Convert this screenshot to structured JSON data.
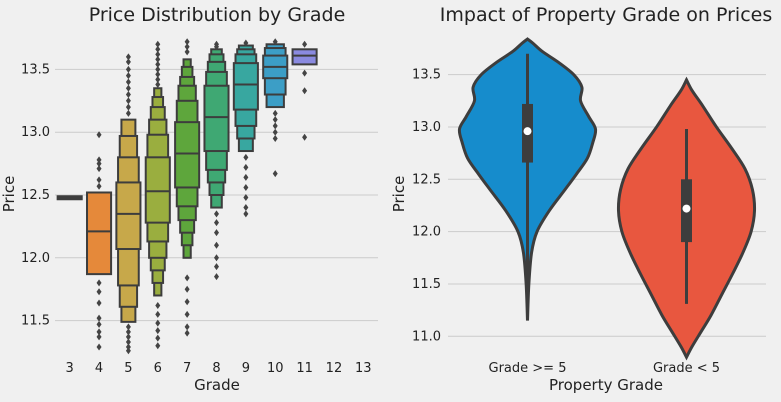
{
  "colors": {
    "background": "#f0f0f0",
    "grid": "#cbcbcb",
    "outline": "#3d3d3d",
    "grade_palette": [
      "#a0a0a0",
      "#e5893a",
      "#c7a84a",
      "#9aae3f",
      "#5ea63c",
      "#3fa873",
      "#38a7a0",
      "#3c9ec6",
      "#8a8ae0"
    ],
    "violin_high": "#168ccc",
    "violin_low": "#e8573f"
  },
  "chart_data": [
    {
      "type": "boxen",
      "title": "Price Distribution by Grade",
      "xlabel": "Grade",
      "ylabel": "Price",
      "categories": [
        "3",
        "4",
        "5",
        "6",
        "7",
        "8",
        "9",
        "10",
        "11",
        "12",
        "13"
      ],
      "ylim": [
        11.25,
        13.75
      ],
      "yticks": [
        "11.5",
        "12.0",
        "12.5",
        "13.0",
        "13.5"
      ],
      "grid": true,
      "series": [
        {
          "grade": "3",
          "median": 12.48,
          "boxes": [
            [
              12.47,
              12.49
            ]
          ],
          "outliers": []
        },
        {
          "grade": "4",
          "median": 12.21,
          "boxes": [
            [
              11.87,
              12.52
            ]
          ],
          "outliers": [
            12.98,
            12.78,
            12.75,
            12.71,
            12.62,
            12.57,
            11.8,
            11.73,
            11.64,
            11.52,
            11.47,
            11.41,
            11.37,
            11.29
          ]
        },
        {
          "grade": "5",
          "median": 12.35,
          "boxes": [
            [
              12.07,
              12.6
            ],
            [
              11.78,
              12.8
            ],
            [
              11.61,
              12.97
            ],
            [
              11.49,
              13.1
            ]
          ],
          "outliers": [
            13.6,
            13.56,
            13.5,
            13.45,
            13.4,
            13.35,
            13.3,
            13.25,
            13.2,
            13.15,
            11.45,
            11.41,
            11.37,
            11.33,
            11.29,
            11.26
          ]
        },
        {
          "grade": "6",
          "median": 12.53,
          "boxes": [
            [
              12.28,
              12.8
            ],
            [
              12.13,
              12.98
            ],
            [
              12.0,
              13.1
            ],
            [
              11.9,
              13.2
            ],
            [
              11.8,
              13.28
            ],
            [
              11.7,
              13.35
            ]
          ],
          "outliers": [
            13.7,
            13.66,
            13.62,
            13.58,
            13.54,
            13.5,
            13.46,
            13.42,
            13.38,
            11.62,
            11.55,
            11.48,
            11.42,
            11.36,
            11.3
          ]
        },
        {
          "grade": "7",
          "median": 12.83,
          "boxes": [
            [
              12.56,
              13.08
            ],
            [
              12.41,
              13.25
            ],
            [
              12.3,
              13.37
            ],
            [
              12.2,
              13.44
            ],
            [
              12.1,
              13.52
            ],
            [
              12.0,
              13.58
            ]
          ],
          "outliers": [
            13.72,
            13.68,
            13.64,
            11.84,
            11.75,
            11.65,
            11.55,
            11.45,
            11.4
          ]
        },
        {
          "grade": "8",
          "median": 13.12,
          "boxes": [
            [
              12.85,
              13.37
            ],
            [
              12.7,
              13.48
            ],
            [
              12.6,
              13.56
            ],
            [
              12.5,
              13.62
            ],
            [
              12.4,
              13.66
            ]
          ],
          "outliers": [
            13.7,
            13.68,
            12.35,
            12.28,
            12.2,
            12.1,
            12.0,
            11.93,
            11.85
          ]
        },
        {
          "grade": "9",
          "median": 13.38,
          "boxes": [
            [
              13.18,
              13.55
            ],
            [
              13.05,
              13.62
            ],
            [
              12.95,
              13.66
            ],
            [
              12.85,
              13.69
            ]
          ],
          "outliers": [
            13.71,
            12.8,
            12.72,
            12.64,
            12.56,
            12.48,
            12.4,
            12.35
          ]
        },
        {
          "grade": "10",
          "median": 13.52,
          "boxes": [
            [
              13.43,
              13.61
            ],
            [
              13.3,
              13.67
            ],
            [
              13.2,
              13.7
            ]
          ],
          "outliers": [
            13.72,
            13.15,
            13.1,
            13.05,
            13.0,
            12.95,
            12.67
          ]
        },
        {
          "grade": "11",
          "median": 13.61,
          "boxes": [
            [
              13.54,
              13.66
            ]
          ],
          "outliers": [
            13.7,
            13.47,
            13.33,
            12.96
          ]
        }
      ]
    },
    {
      "type": "violin",
      "title": "Impact of Property Grade on Prices",
      "xlabel": "Property Grade",
      "ylabel": "Price",
      "categories": [
        "Grade >= 5",
        "Grade < 5"
      ],
      "ylim": [
        10.85,
        13.85
      ],
      "yticks": [
        "11.0",
        "11.5",
        "12.0",
        "12.5",
        "13.0",
        "13.5"
      ],
      "grid": true,
      "series": [
        {
          "category": "Grade >= 5",
          "median": 12.96,
          "q1": 12.66,
          "q3": 13.22,
          "whisker_low": 11.16,
          "whisker_high": 13.7,
          "density_y": [
            11.15,
            11.5,
            11.8,
            12.0,
            12.2,
            12.4,
            12.55,
            12.7,
            12.85,
            12.98,
            13.1,
            13.25,
            13.38,
            13.5,
            13.62,
            13.72,
            13.8,
            13.84
          ],
          "density_w": [
            0.0,
            0.02,
            0.06,
            0.14,
            0.32,
            0.55,
            0.72,
            0.88,
            0.96,
            1.0,
            0.9,
            0.78,
            0.8,
            0.68,
            0.45,
            0.22,
            0.08,
            0.0
          ]
        },
        {
          "category": "Grade < 5",
          "median": 12.22,
          "q1": 11.9,
          "q3": 12.5,
          "whisker_low": 11.31,
          "whisker_high": 12.98,
          "density_y": [
            10.8,
            10.9,
            11.05,
            11.2,
            11.4,
            11.6,
            11.8,
            12.0,
            12.2,
            12.4,
            12.6,
            12.8,
            13.0,
            13.2,
            13.35,
            13.45
          ],
          "density_w": [
            0.0,
            0.08,
            0.22,
            0.36,
            0.52,
            0.68,
            0.83,
            0.95,
            1.0,
            0.97,
            0.86,
            0.66,
            0.44,
            0.24,
            0.08,
            0.0
          ]
        }
      ]
    }
  ]
}
